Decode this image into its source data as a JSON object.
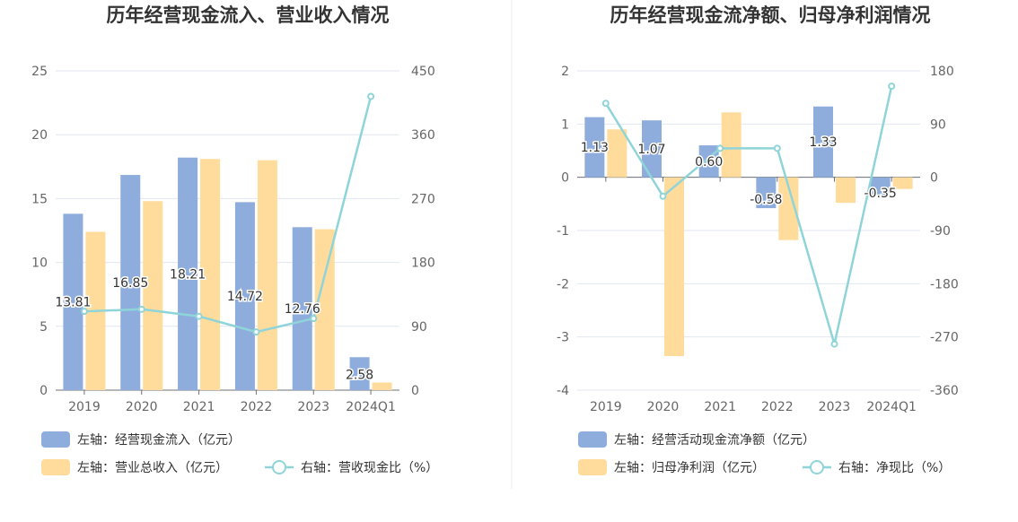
{
  "chart_data": [
    {
      "type": "bar",
      "title": "历年经营现金流入、营业收入情况",
      "categories": [
        "2019",
        "2020",
        "2021",
        "2022",
        "2023",
        "2024Q1"
      ],
      "left_axis": {
        "ylim": [
          0,
          25
        ],
        "ticks": [
          "0",
          "5",
          "10",
          "15",
          "20",
          "25"
        ]
      },
      "right_axis": {
        "ylim": [
          0,
          450
        ],
        "ticks": [
          "0",
          "90",
          "180",
          "270",
          "360",
          "450"
        ]
      },
      "series": [
        {
          "name": "左轴：经营现金流入（亿元）",
          "axis": "left",
          "type": "bar",
          "color": "#8eaddc",
          "values": [
            13.81,
            16.85,
            18.21,
            14.72,
            12.76,
            2.58
          ],
          "labels": [
            "13.81",
            "16.85",
            "18.21",
            "14.72",
            "12.76",
            "2.58"
          ]
        },
        {
          "name": "左轴：营业总收入（亿元）",
          "axis": "left",
          "type": "bar",
          "color": "#ffdc9c",
          "values": [
            12.4,
            14.8,
            18.1,
            18.0,
            12.6,
            0.6
          ]
        },
        {
          "name": "右轴：营收现金比（%）",
          "axis": "right",
          "type": "line",
          "color": "#8fd4d9",
          "values": [
            111,
            114,
            104,
            82,
            101,
            414
          ]
        }
      ],
      "legend": "bottom-left"
    },
    {
      "type": "bar",
      "title": "历年经营现金流净额、归母净利润情况",
      "categories": [
        "2019",
        "2020",
        "2021",
        "2022",
        "2023",
        "2024Q1"
      ],
      "left_axis": {
        "ylim": [
          -4,
          2
        ],
        "ticks": [
          "-4",
          "-3",
          "-2",
          "-1",
          "0",
          "1",
          "2"
        ]
      },
      "right_axis": {
        "ylim": [
          -360,
          180
        ],
        "ticks": [
          "-360",
          "-270",
          "-180",
          "-90",
          "0",
          "90",
          "180"
        ]
      },
      "series": [
        {
          "name": "左轴：经营活动现金流净额（亿元）",
          "axis": "left",
          "type": "bar",
          "color": "#8eaddc",
          "values": [
            1.13,
            1.07,
            0.6,
            -0.58,
            1.33,
            -0.35
          ],
          "labels": [
            "1.13",
            "1.07",
            "0.60",
            "-0.58",
            "1.33",
            "-0.35"
          ]
        },
        {
          "name": "左轴：归母净利润（亿元）",
          "axis": "left",
          "type": "bar",
          "color": "#ffdc9c",
          "values": [
            0.9,
            -3.36,
            1.22,
            -1.18,
            -0.48,
            -0.22
          ]
        },
        {
          "name": "右轴：净现比（%）",
          "axis": "right",
          "type": "line",
          "color": "#8fd4d9",
          "values": [
            125,
            -32,
            49,
            49,
            -282,
            154
          ]
        }
      ],
      "legend": "bottom-left"
    }
  ]
}
